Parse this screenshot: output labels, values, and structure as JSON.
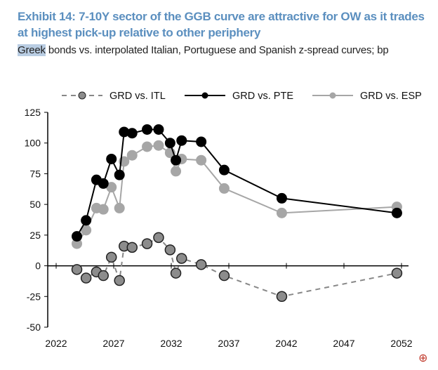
{
  "title": "Exhibit 14: 7-10Y sector of the GGB curve are attractive for OW as it trades at highest pick-up relative to other periphery",
  "subtitle_highlight": "Greek",
  "subtitle_rest": " bonds vs. interpolated Italian, Portuguese and Spanish z-spread curves; bp",
  "chart_data": {
    "type": "line",
    "title": "Exhibit 14: 7-10Y sector of the GGB curve are attractive for OW as it trades at highest pick-up relative to other periphery",
    "ylabel": "bp",
    "xlim": [
      2022,
      2052
    ],
    "ylim": [
      -50,
      125
    ],
    "xticks": [
      "2022",
      "2027",
      "2032",
      "2037",
      "2042",
      "2047",
      "2052"
    ],
    "yticks": [
      "125",
      "100",
      "75",
      "50",
      "25",
      "0",
      "-25",
      "-50"
    ],
    "grid": false,
    "legend": "top",
    "x": [
      2023.8,
      2024.6,
      2025.5,
      2026.1,
      2026.8,
      2027.5,
      2027.9,
      2028.6,
      2029.9,
      2030.9,
      2031.9,
      2032.4,
      2032.9,
      2034.6,
      2036.6,
      2041.6,
      2051.6
    ],
    "series": [
      {
        "name": "GRD vs. ITL",
        "color": "#888888",
        "line": "dashed",
        "values": [
          -3,
          -10,
          -5,
          -8,
          7,
          -12,
          16,
          15,
          18,
          23,
          13,
          -6,
          6,
          1,
          -8,
          -25,
          -6
        ]
      },
      {
        "name": "GRD vs. PTE",
        "color": "#000000",
        "line": "solid",
        "values": [
          24,
          37,
          70,
          67,
          87,
          74,
          109,
          108,
          111,
          111,
          100,
          86,
          102,
          101,
          78,
          55,
          43
        ]
      },
      {
        "name": "GRD vs. ESP",
        "color": "#a6a6a6",
        "line": "solid",
        "values": [
          18,
          29,
          47,
          46,
          64,
          47,
          85,
          90,
          97,
          98,
          92,
          77,
          87,
          86,
          63,
          43,
          48
        ]
      }
    ]
  },
  "zoom_icon": "zoom-in-icon"
}
